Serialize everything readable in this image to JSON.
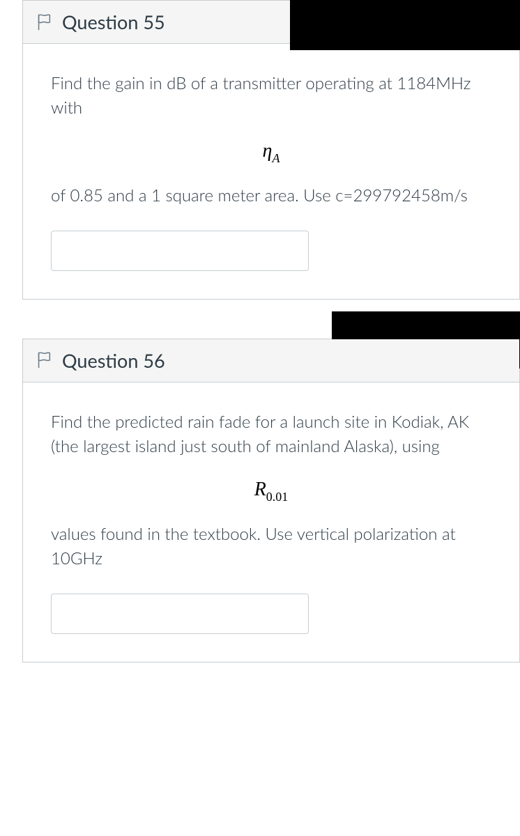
{
  "colors": {
    "border": "#c7cdd1",
    "header_bg": "#f5f5f5",
    "text": "#2d3b45",
    "flag_stroke": "#6a7883",
    "black": "#000000"
  },
  "questions": [
    {
      "title": "Question 55",
      "text_before_formula": "Find the gain in dB of a transmitter operating at 1184MHz with",
      "formula_html": "<span>η</span><span class=\"sub\">A</span>",
      "text_after_formula": "of 0.85 and a 1 square meter area. Use c=299792458m/s",
      "answer_value": ""
    },
    {
      "title": "Question 56",
      "text_before_formula": "Find the predicted rain fade for a launch site in Kodiak, AK (the largest island just south of mainland Alaska), using",
      "formula_html": "<span>R</span><span class=\"subnum\">0.01</span>",
      "text_after_formula": "values found in the textbook. Use vertical polarization at 10GHz",
      "answer_value": ""
    }
  ]
}
